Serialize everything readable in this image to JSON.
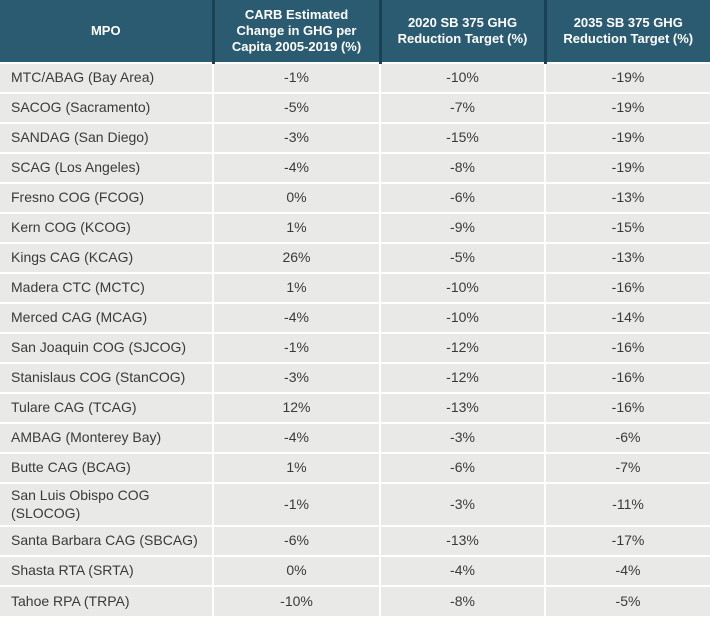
{
  "table": {
    "columns": [
      {
        "label": "MPO"
      },
      {
        "label": "CARB Estimated Change in GHG per Capita 2005-2019 (%)"
      },
      {
        "label": "2020 SB 375 GHG Reduction Target (%)"
      },
      {
        "label": "2035 SB 375 GHG Reduction Target (%)"
      }
    ],
    "rows": [
      {
        "mpo": "MTC/ABAG (Bay Area)",
        "carb_change": "-1%",
        "target_2020": "-10%",
        "target_2035": "-19%"
      },
      {
        "mpo": "SACOG (Sacramento)",
        "carb_change": "-5%",
        "target_2020": "-7%",
        "target_2035": "-19%"
      },
      {
        "mpo": "SANDAG (San Diego)",
        "carb_change": "-3%",
        "target_2020": "-15%",
        "target_2035": "-19%"
      },
      {
        "mpo": "SCAG (Los Angeles)",
        "carb_change": "-4%",
        "target_2020": "-8%",
        "target_2035": "-19%"
      },
      {
        "mpo": "Fresno COG (FCOG)",
        "carb_change": "0%",
        "target_2020": "-6%",
        "target_2035": "-13%"
      },
      {
        "mpo": "Kern COG (KCOG)",
        "carb_change": "1%",
        "target_2020": "-9%",
        "target_2035": "-15%"
      },
      {
        "mpo": "Kings CAG (KCAG)",
        "carb_change": "26%",
        "target_2020": "-5%",
        "target_2035": "-13%"
      },
      {
        "mpo": "Madera CTC (MCTC)",
        "carb_change": "1%",
        "target_2020": "-10%",
        "target_2035": "-16%"
      },
      {
        "mpo": "Merced CAG (MCAG)",
        "carb_change": "-4%",
        "target_2020": "-10%",
        "target_2035": "-14%"
      },
      {
        "mpo": "San Joaquin COG (SJCOG)",
        "carb_change": "-1%",
        "target_2020": "-12%",
        "target_2035": "-16%"
      },
      {
        "mpo": "Stanislaus COG (StanCOG)",
        "carb_change": "-3%",
        "target_2020": "-12%",
        "target_2035": "-16%"
      },
      {
        "mpo": "Tulare CAG (TCAG)",
        "carb_change": "12%",
        "target_2020": "-13%",
        "target_2035": "-16%"
      },
      {
        "mpo": "AMBAG (Monterey Bay)",
        "carb_change": "-4%",
        "target_2020": "-3%",
        "target_2035": "-6%"
      },
      {
        "mpo": "Butte CAG (BCAG)",
        "carb_change": "1%",
        "target_2020": "-6%",
        "target_2035": "-7%"
      },
      {
        "mpo": "San Luis Obispo COG\n(SLOCOG)",
        "carb_change": "-1%",
        "target_2020": "-3%",
        "target_2035": "-11%"
      },
      {
        "mpo": "Santa Barbara CAG (SBCAG)",
        "carb_change": "-6%",
        "target_2020": "-13%",
        "target_2035": "-17%"
      },
      {
        "mpo": "Shasta RTA (SRTA)",
        "carb_change": "0%",
        "target_2020": "-4%",
        "target_2035": "-4%"
      },
      {
        "mpo": "Tahoe RPA (TRPA)",
        "carb_change": "-10%",
        "target_2020": "-8%",
        "target_2035": "-5%"
      }
    ]
  },
  "colors": {
    "header_bg": "#2b5b70",
    "header_divider": "#1b4254",
    "header_text": "#ffffff",
    "row_bg": "#e9e9e7",
    "row_divider": "#ffffff",
    "body_text": "#3a3a3a"
  }
}
